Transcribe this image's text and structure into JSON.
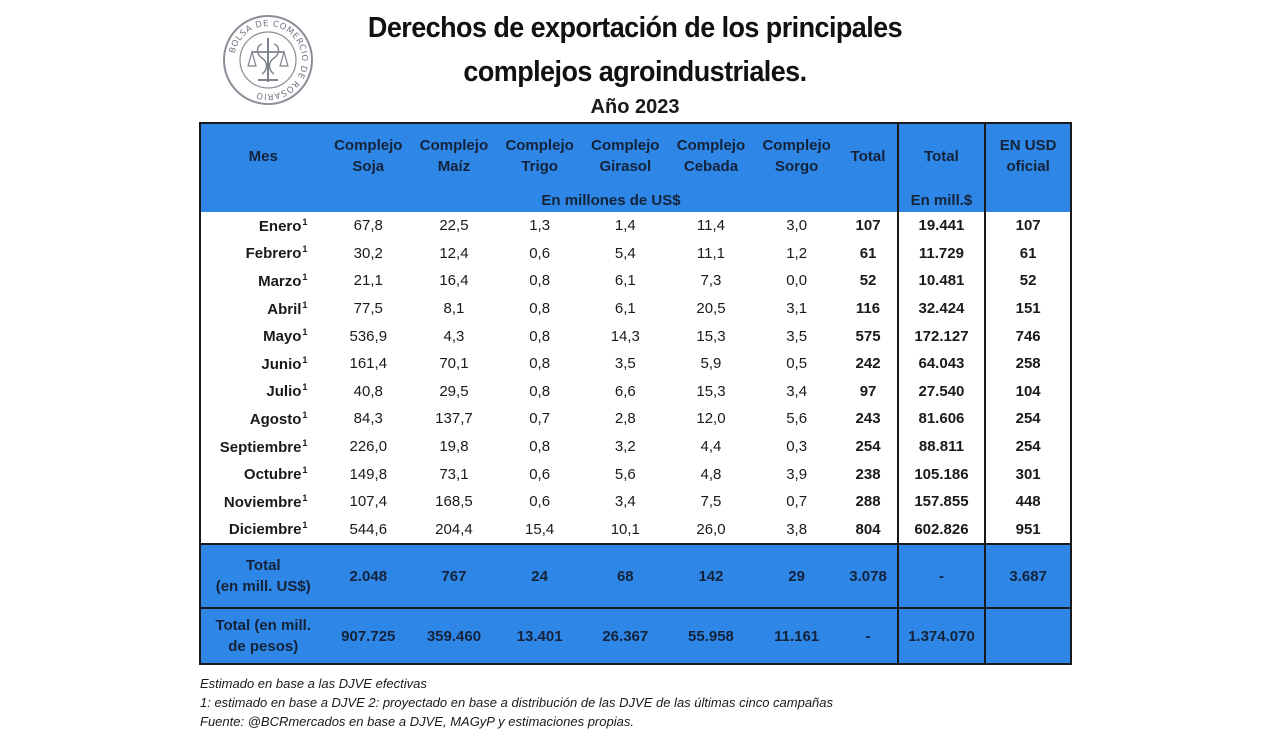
{
  "logo": {
    "text": "BOLSA DE COMERCIO DE ROSARIO"
  },
  "title": {
    "line1": "Derechos de exportación de los principales",
    "line2": "complejos agroindustriales.",
    "year": "Año 2023"
  },
  "table": {
    "headers": {
      "mes": "Mes",
      "soja": [
        "Complejo",
        "Soja"
      ],
      "maiz": [
        "Complejo",
        "Maíz"
      ],
      "trigo": [
        "Complejo",
        "Trigo"
      ],
      "girasol": [
        "Complejo",
        "Girasol"
      ],
      "cebada": [
        "Complejo",
        "Cebada"
      ],
      "sorgo": [
        "Complejo",
        "Sorgo"
      ],
      "total": "Total",
      "total_pesos": "Total",
      "usd_oficial": [
        "EN USD",
        "oficial"
      ]
    },
    "subheaders": {
      "unit_usd": "En millones de US$",
      "unit_pesos": "En mill.$"
    },
    "rows": [
      {
        "mes": "Enero",
        "sup": "1",
        "soja": "67,8",
        "maiz": "22,5",
        "trigo": "1,3",
        "girasol": "1,4",
        "cebada": "11,4",
        "sorgo": "3,0",
        "total": "107",
        "total_pesos": "19.441",
        "usd_oficial": "107"
      },
      {
        "mes": "Febrero",
        "sup": "1",
        "soja": "30,2",
        "maiz": "12,4",
        "trigo": "0,6",
        "girasol": "5,4",
        "cebada": "11,1",
        "sorgo": "1,2",
        "total": "61",
        "total_pesos": "11.729",
        "usd_oficial": "61"
      },
      {
        "mes": "Marzo",
        "sup": "1",
        "soja": "21,1",
        "maiz": "16,4",
        "trigo": "0,8",
        "girasol": "6,1",
        "cebada": "7,3",
        "sorgo": "0,0",
        "total": "52",
        "total_pesos": "10.481",
        "usd_oficial": "52"
      },
      {
        "mes": "Abril",
        "sup": "1",
        "soja": "77,5",
        "maiz": "8,1",
        "trigo": "0,8",
        "girasol": "6,1",
        "cebada": "20,5",
        "sorgo": "3,1",
        "total": "116",
        "total_pesos": "32.424",
        "usd_oficial": "151"
      },
      {
        "mes": "Mayo",
        "sup": "1",
        "soja": "536,9",
        "maiz": "4,3",
        "trigo": "0,8",
        "girasol": "14,3",
        "cebada": "15,3",
        "sorgo": "3,5",
        "total": "575",
        "total_pesos": "172.127",
        "usd_oficial": "746"
      },
      {
        "mes": "Junio",
        "sup": "1",
        "soja": "161,4",
        "maiz": "70,1",
        "trigo": "0,8",
        "girasol": "3,5",
        "cebada": "5,9",
        "sorgo": "0,5",
        "total": "242",
        "total_pesos": "64.043",
        "usd_oficial": "258"
      },
      {
        "mes": "Julio",
        "sup": "1",
        "soja": "40,8",
        "maiz": "29,5",
        "trigo": "0,8",
        "girasol": "6,6",
        "cebada": "15,3",
        "sorgo": "3,4",
        "total": "97",
        "total_pesos": "27.540",
        "usd_oficial": "104"
      },
      {
        "mes": "Agosto",
        "sup": "1",
        "soja": "84,3",
        "maiz": "137,7",
        "trigo": "0,7",
        "girasol": "2,8",
        "cebada": "12,0",
        "sorgo": "5,6",
        "total": "243",
        "total_pesos": "81.606",
        "usd_oficial": "254"
      },
      {
        "mes": "Septiembre",
        "sup": "1",
        "soja": "226,0",
        "maiz": "19,8",
        "trigo": "0,8",
        "girasol": "3,2",
        "cebada": "4,4",
        "sorgo": "0,3",
        "total": "254",
        "total_pesos": "88.811",
        "usd_oficial": "254"
      },
      {
        "mes": "Octubre",
        "sup": "1",
        "soja": "149,8",
        "maiz": "73,1",
        "trigo": "0,6",
        "girasol": "5,6",
        "cebada": "4,8",
        "sorgo": "3,9",
        "total": "238",
        "total_pesos": "105.186",
        "usd_oficial": "301"
      },
      {
        "mes": "Noviembre",
        "sup": "1",
        "soja": "107,4",
        "maiz": "168,5",
        "trigo": "0,6",
        "girasol": "3,4",
        "cebada": "7,5",
        "sorgo": "0,7",
        "total": "288",
        "total_pesos": "157.855",
        "usd_oficial": "448"
      },
      {
        "mes": "Diciembre",
        "sup": "1",
        "soja": "544,6",
        "maiz": "204,4",
        "trigo": "15,4",
        "girasol": "10,1",
        "cebada": "26,0",
        "sorgo": "3,8",
        "total": "804",
        "total_pesos": "602.826",
        "usd_oficial": "951"
      }
    ],
    "total_usd": {
      "label": [
        "Total",
        "(en mill. US$)"
      ],
      "soja": "2.048",
      "maiz": "767",
      "trigo": "24",
      "girasol": "68",
      "cebada": "142",
      "sorgo": "29",
      "total": "3.078",
      "total_pesos": "-",
      "usd_oficial": "3.687"
    },
    "total_pesos": {
      "label": [
        "Total (en mill.",
        "de pesos)"
      ],
      "soja": "907.725",
      "maiz": "359.460",
      "trigo": "13.401",
      "girasol": "26.367",
      "cebada": "55.958",
      "sorgo": "11.161",
      "total": "-",
      "total_pesos": "1.374.070",
      "usd_oficial": ""
    }
  },
  "notes": [
    "Estimado en base a las DJVE efectivas",
    "1: estimado en base a DJVE 2: proyectado en base a distribución de las DJVE de las últimas cinco campañas",
    "Fuente: @BCRmercados en base a DJVE, MAGyP y estimaciones propias."
  ],
  "colors": {
    "header_blue": "#2e86e6",
    "border": "#1a1a1a"
  }
}
